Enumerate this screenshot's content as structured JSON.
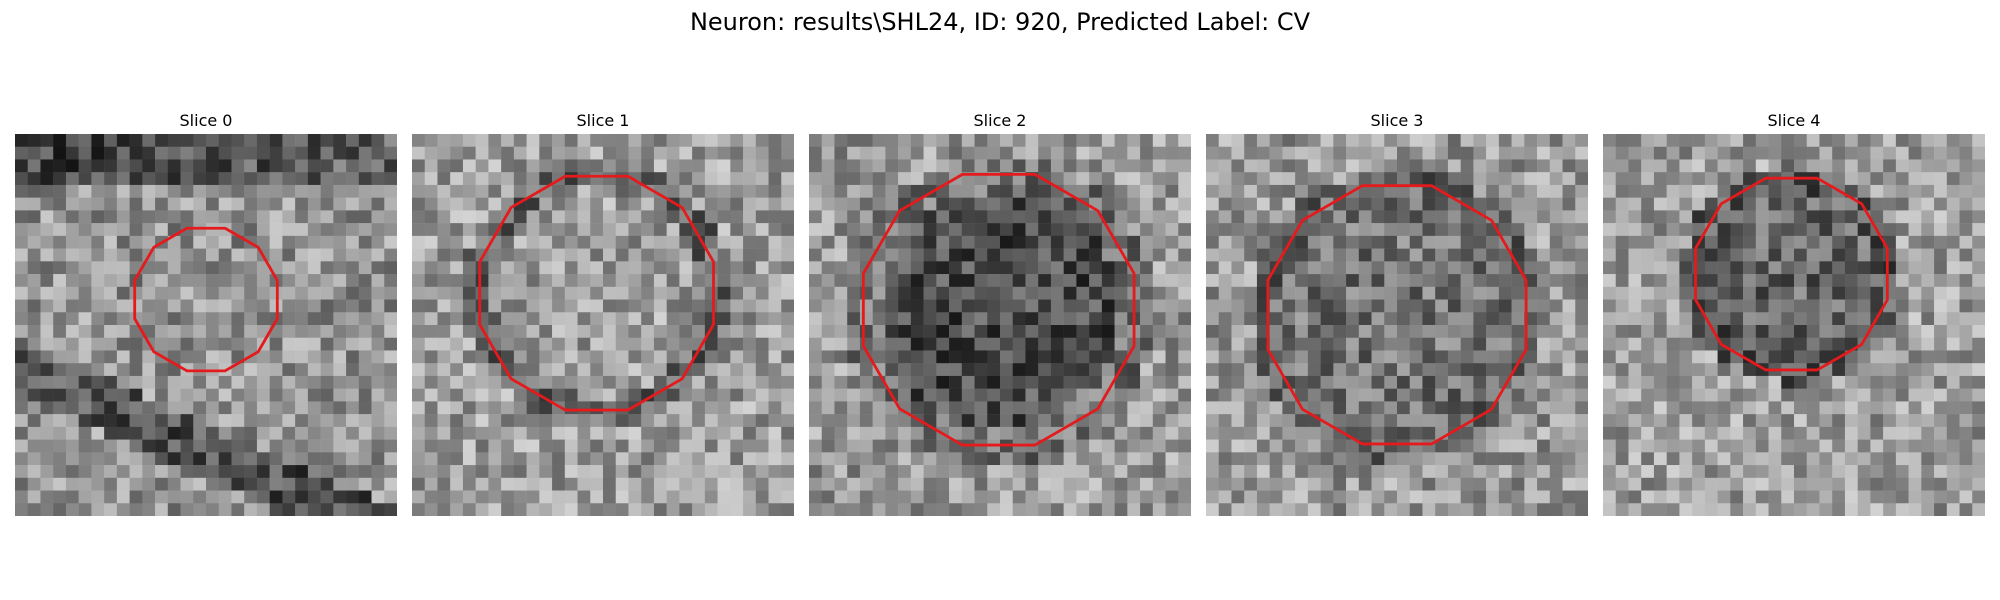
{
  "figure": {
    "title": "Neuron: results\\SHL24, ID: 920, Predicted Label: CV"
  },
  "contour_color": "#e41a1c",
  "panels": [
    {
      "title": "Slice 0"
    },
    {
      "title": "Slice 1"
    },
    {
      "title": "Slice 2"
    },
    {
      "title": "Slice 3"
    },
    {
      "title": "Slice 4"
    }
  ]
}
